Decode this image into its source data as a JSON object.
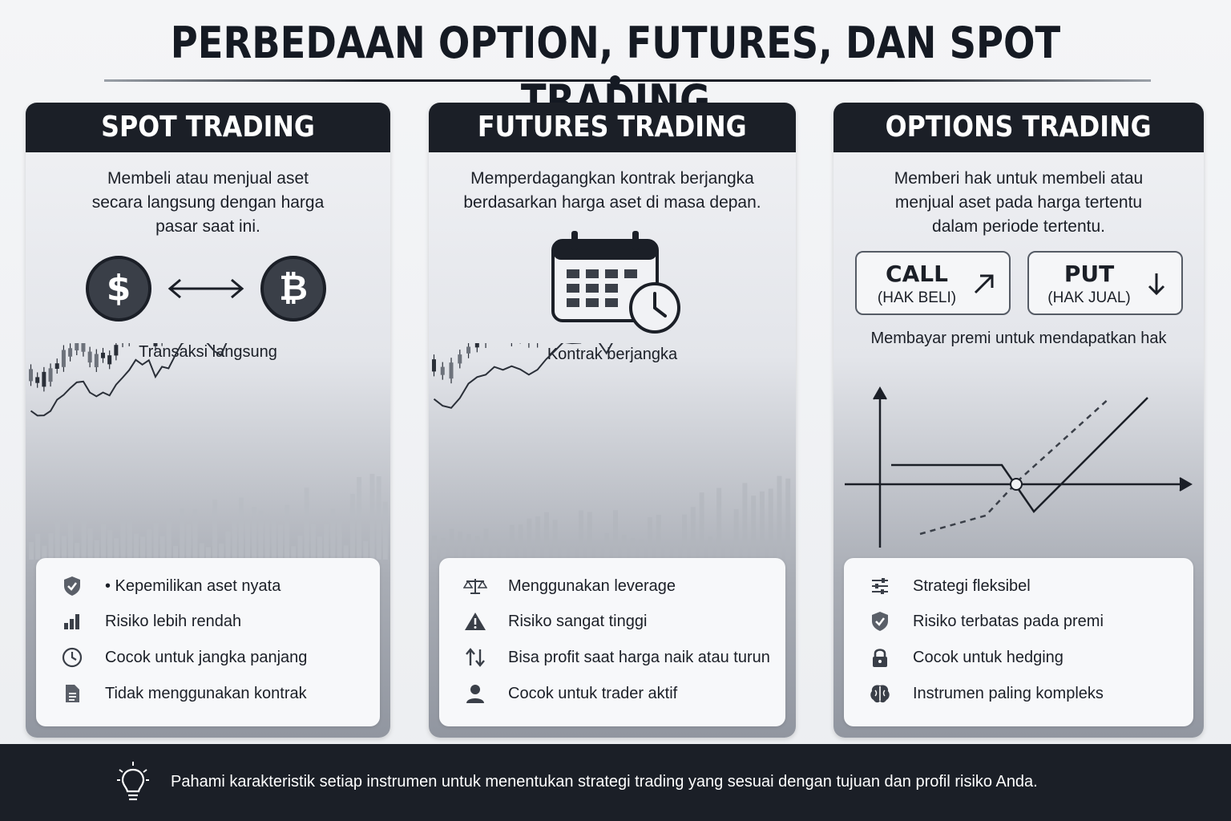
{
  "title": "PERBEDAAN OPTION, FUTURES, DAN SPOT TRADING",
  "panels": [
    {
      "header": "SPOT TRADING",
      "description": [
        "Membeli atau menjual aset",
        "secara langsung dengan harga",
        "pasar saat ini."
      ],
      "symbol_left": "$",
      "symbol_right": "₿",
      "caption": "Transaksi langsung",
      "features": [
        {
          "icon": "shield-check-icon",
          "text": "• Kepemilikan aset nyata"
        },
        {
          "icon": "bar-chart-icon",
          "text": "Risiko lebih rendah"
        },
        {
          "icon": "clock-icon",
          "text": "Cocok untuk jangka panjang"
        },
        {
          "icon": "document-icon",
          "text": "Tidak menggunakan kontrak"
        }
      ]
    },
    {
      "header": "FUTURES TRADING",
      "description": [
        "Memperdagangkan kontrak berjangka",
        "berdasarkan harga aset di masa depan."
      ],
      "caption": "Kontrak berjangka",
      "features": [
        {
          "icon": "scale-icon",
          "text": "Menggunakan leverage"
        },
        {
          "icon": "warning-icon",
          "text": "Risiko sangat tinggi"
        },
        {
          "icon": "up-down-arrows-icon",
          "text": "Bisa profit saat harga naik atau turun"
        },
        {
          "icon": "user-icon",
          "text": "Cocok untuk trader aktif"
        }
      ]
    },
    {
      "header": "OPTIONS TRADING",
      "description": [
        "Memberi hak untuk membeli atau",
        "menjual aset pada harga tertentu",
        "dalam periode tertentu."
      ],
      "call": {
        "label": "CALL",
        "sub": "(HAK BELI)"
      },
      "put": {
        "label": "PUT",
        "sub": "(HAK JUAL)"
      },
      "caption": "Membayar premi untuk mendapatkan hak",
      "features": [
        {
          "icon": "sliders-icon",
          "text": "Strategi fleksibel"
        },
        {
          "icon": "shield-check-icon",
          "text": "Risiko terbatas pada premi"
        },
        {
          "icon": "lock-icon",
          "text": "Cocok untuk hedging"
        },
        {
          "icon": "brain-icon",
          "text": "Instrumen paling kompleks"
        }
      ]
    }
  ],
  "footer": {
    "icon": "lightbulb-icon",
    "text": "Pahami karakteristik setiap instrumen untuk menentukan strategi trading yang sesuai dengan tujuan dan profil risiko Anda."
  },
  "colors": {
    "dark": "#1b1f27",
    "panel_light": "#f1f2f5",
    "accent_gray": "#3a3f48"
  }
}
